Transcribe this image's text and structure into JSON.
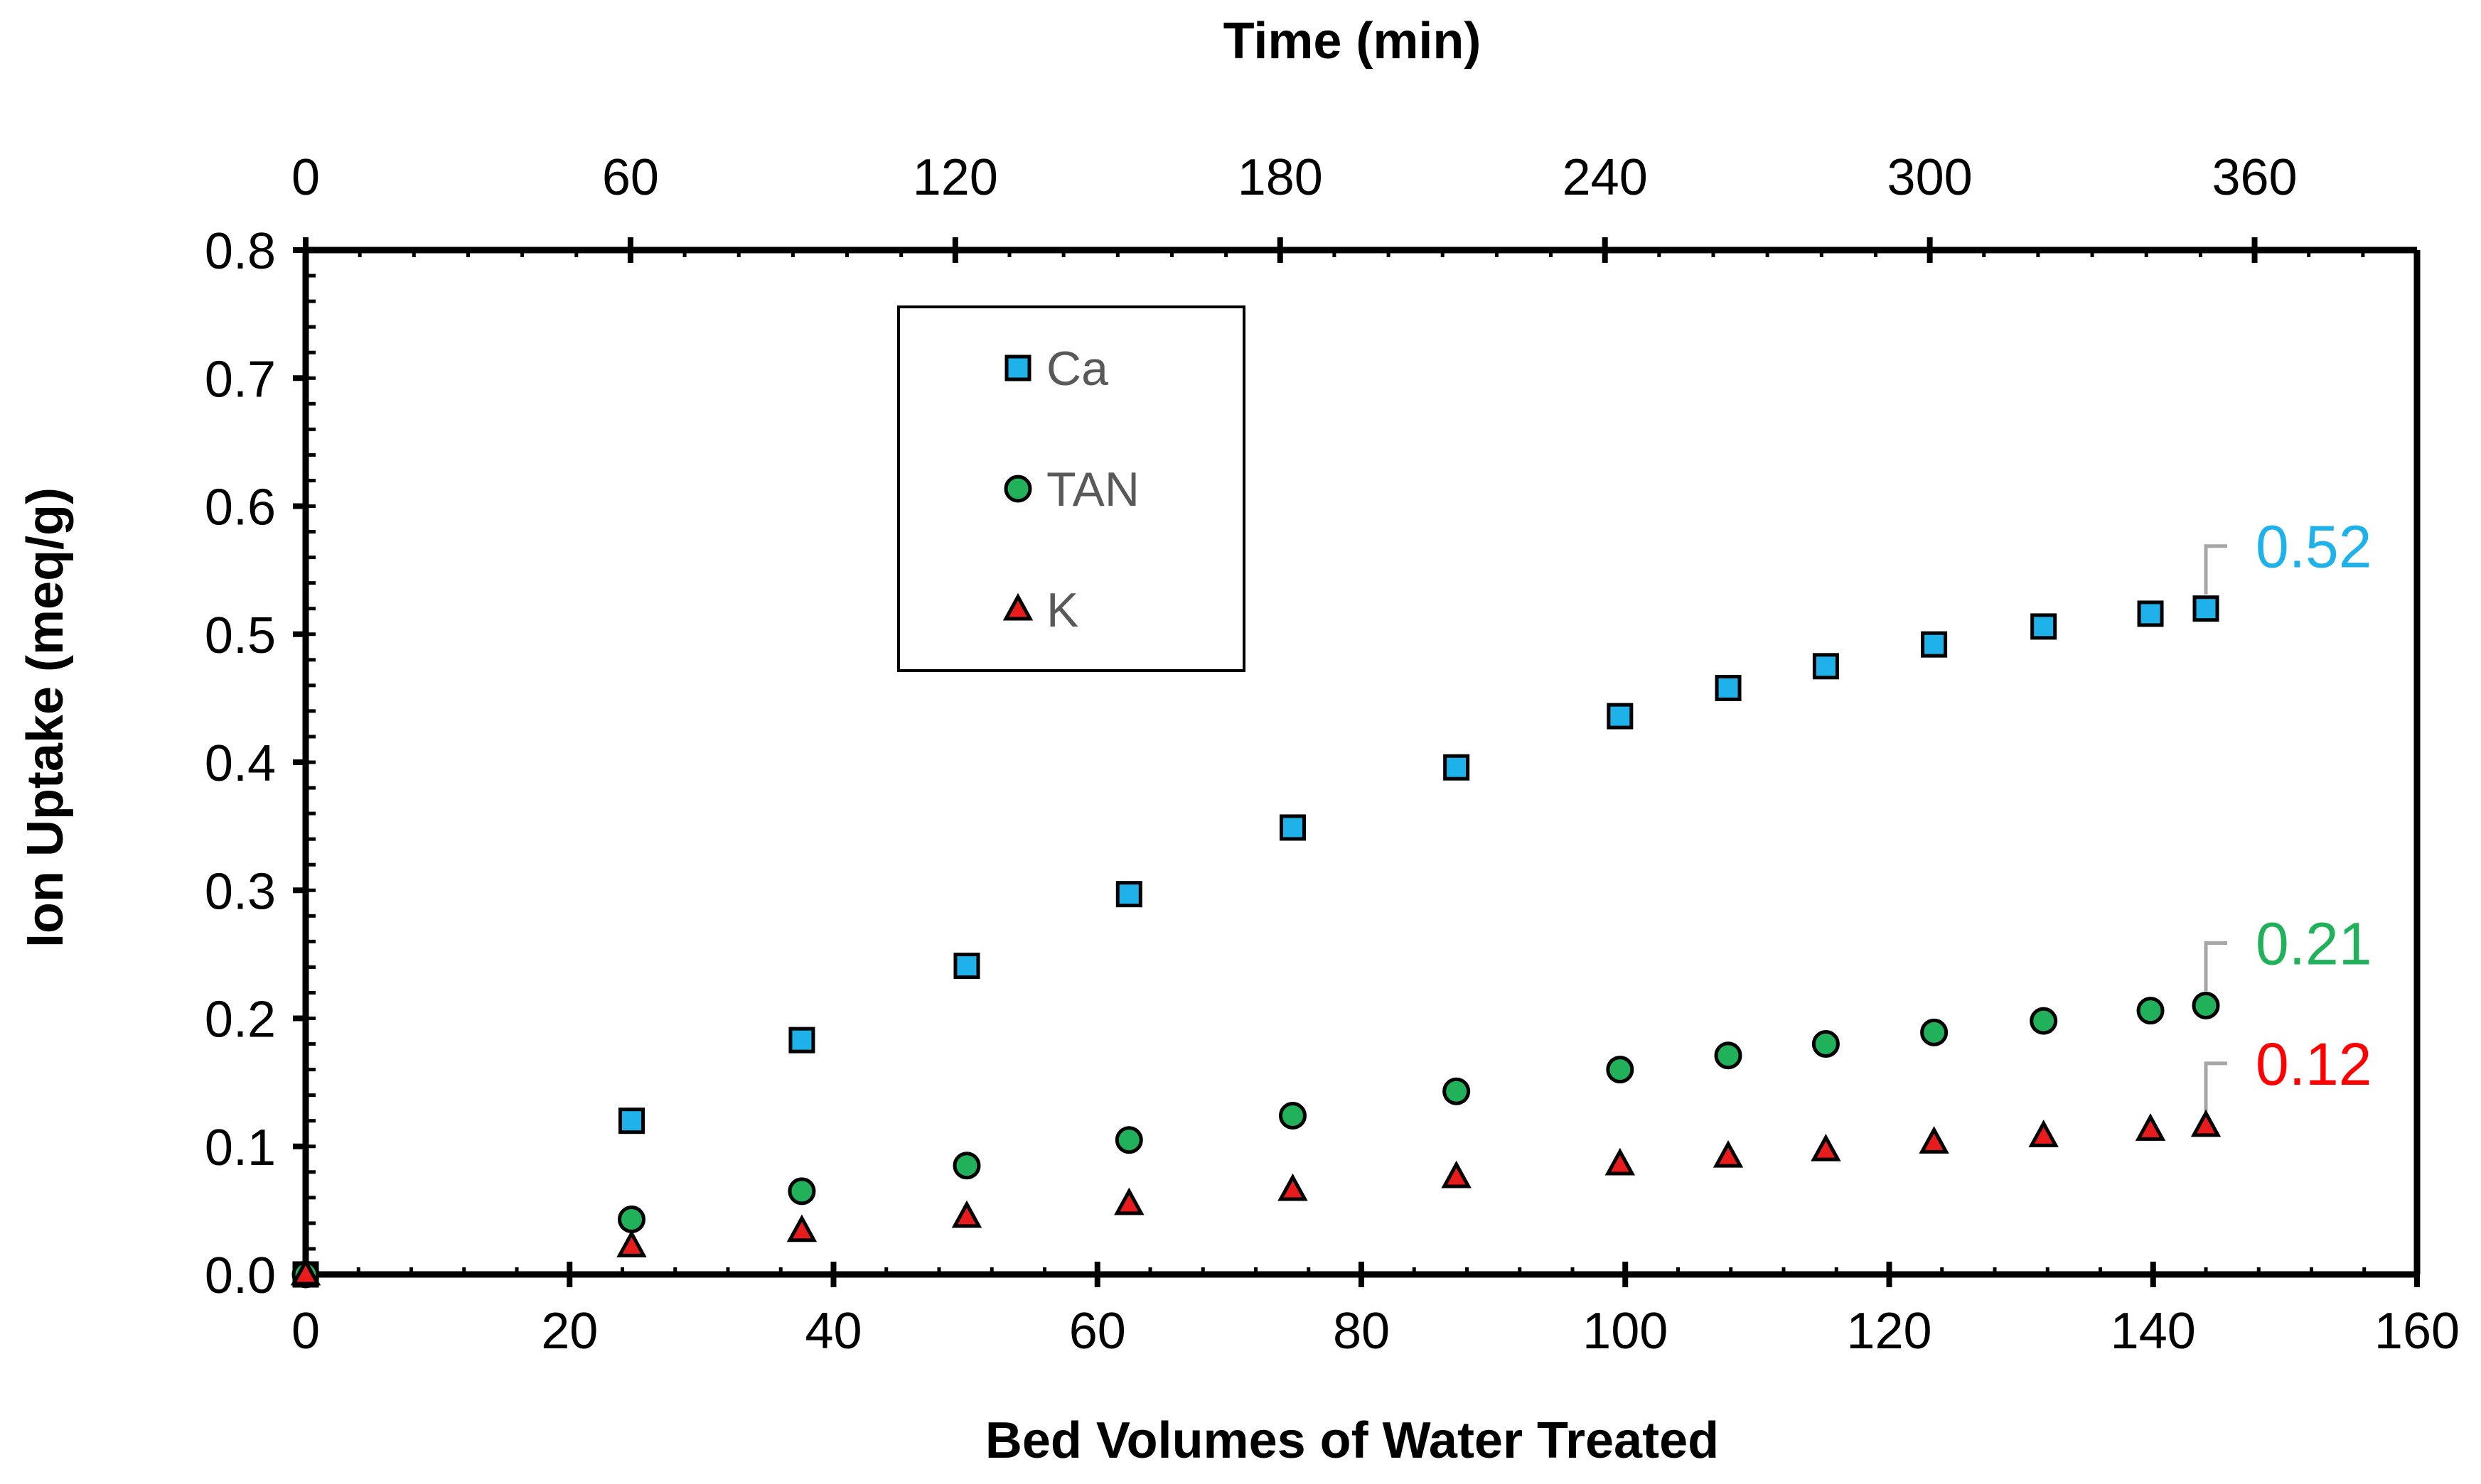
{
  "chart_data": {
    "type": "scatter",
    "title": "",
    "xlabel": "Bed Volumes of Water Treated",
    "ylabel": "Ion Uptake (meq/g)",
    "x2label": "Time (min)",
    "xlim": [
      0,
      160
    ],
    "ylim": [
      0.0,
      0.8
    ],
    "x2lim": [
      0,
      390
    ],
    "x_ticks": [
      "0",
      "20",
      "40",
      "60",
      "80",
      "100",
      "120",
      "140",
      "160"
    ],
    "y_ticks": [
      "0.0",
      "0.1",
      "0.2",
      "0.3",
      "0.4",
      "0.5",
      "0.6",
      "0.7",
      "0.8"
    ],
    "x2_ticks": [
      "0",
      "60",
      "120",
      "180",
      "240",
      "300",
      "360"
    ],
    "grid": false,
    "legend_position": "top-center",
    "series": [
      {
        "name": "Ca",
        "marker": "square",
        "color": "#1fb1e9",
        "x": [
          0,
          24.7,
          37.6,
          50.1,
          62.4,
          74.8,
          87.2,
          99.6,
          107.8,
          115.2,
          123.4,
          131.7,
          139.8,
          144.0
        ],
        "y": [
          0.0,
          0.12,
          0.183,
          0.241,
          0.297,
          0.349,
          0.396,
          0.436,
          0.458,
          0.475,
          0.492,
          0.506,
          0.516,
          0.52
        ]
      },
      {
        "name": "TAN",
        "marker": "circle",
        "color": "#21b15a",
        "x": [
          0,
          24.7,
          37.6,
          50.1,
          62.4,
          74.8,
          87.2,
          99.6,
          107.8,
          115.2,
          123.4,
          131.7,
          139.8,
          144.0
        ],
        "y": [
          0.0,
          0.043,
          0.065,
          0.085,
          0.105,
          0.124,
          0.143,
          0.16,
          0.171,
          0.18,
          0.189,
          0.198,
          0.206,
          0.21
        ]
      },
      {
        "name": "K",
        "marker": "triangle",
        "color": "#e81c1c",
        "x": [
          0,
          24.7,
          37.6,
          50.1,
          62.4,
          74.8,
          87.2,
          99.6,
          107.8,
          115.2,
          123.4,
          131.7,
          139.8,
          144.0
        ],
        "y": [
          0.0,
          0.022,
          0.034,
          0.045,
          0.055,
          0.066,
          0.076,
          0.086,
          0.092,
          0.097,
          0.103,
          0.108,
          0.113,
          0.116
        ]
      }
    ],
    "annotations": [
      {
        "series": "Ca",
        "text": "0.52",
        "color": "#1fb1e9"
      },
      {
        "series": "TAN",
        "text": "0.21",
        "color": "#21b15a"
      },
      {
        "series": "K",
        "text": "0.12",
        "color": "#ff0000"
      }
    ]
  }
}
